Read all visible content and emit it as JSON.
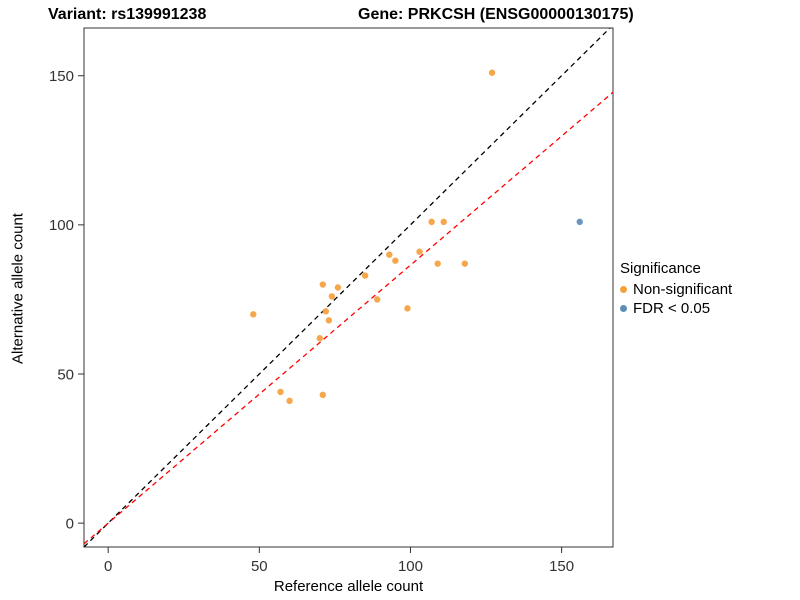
{
  "titles": {
    "variant": "Variant: rs139991238",
    "gene": "Gene: PRKCSH (ENSG00000130175)"
  },
  "chart_data": {
    "type": "scatter",
    "xlabel": "Reference allele count",
    "ylabel": "Alternative allele count",
    "xlim": [
      -8,
      167
    ],
    "ylim": [
      -8,
      166
    ],
    "xticks": [
      0,
      50,
      100,
      150
    ],
    "yticks": [
      0,
      50,
      100,
      150
    ],
    "grid": false,
    "legend_title": "Significance",
    "legend_position": "right",
    "series": [
      {
        "name": "Non-significant",
        "color": "#F5A03C",
        "points": [
          [
            48,
            70
          ],
          [
            57,
            44
          ],
          [
            60,
            41
          ],
          [
            70,
            62
          ],
          [
            71,
            80
          ],
          [
            72,
            71
          ],
          [
            73,
            68
          ],
          [
            71,
            43
          ],
          [
            74,
            76
          ],
          [
            76,
            79
          ],
          [
            85,
            83
          ],
          [
            89,
            75
          ],
          [
            93,
            90
          ],
          [
            95,
            88
          ],
          [
            99,
            72
          ],
          [
            103,
            91
          ],
          [
            107,
            101
          ],
          [
            109,
            87
          ],
          [
            111,
            101
          ],
          [
            118,
            87
          ],
          [
            127,
            151
          ]
        ]
      },
      {
        "name": "FDR < 0.05",
        "color": "#5B8DB8",
        "points": [
          [
            156,
            101
          ]
        ]
      }
    ],
    "lines": [
      {
        "name": "identity-line",
        "color": "#000000",
        "dashed": true,
        "slope": 1,
        "intercept": 0
      },
      {
        "name": "fit-line",
        "color": "#FF0000",
        "dashed": true,
        "slope": 0.865,
        "intercept": 0
      }
    ]
  }
}
